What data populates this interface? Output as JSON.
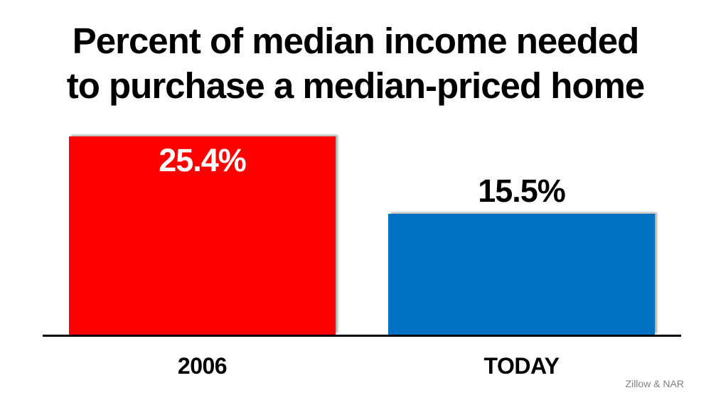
{
  "chart_data": {
    "type": "bar",
    "title": "Percent of median income needed to purchase a median-priced home",
    "title_lines": [
      "Percent of median income needed",
      "to purchase a median-priced home"
    ],
    "categories": [
      "2006",
      "TODAY"
    ],
    "values": [
      25.4,
      15.5
    ],
    "value_labels": [
      "25.4%",
      "15.5%"
    ],
    "series": [
      {
        "name": "Percent of median income needed",
        "values": [
          25.4,
          15.5
        ]
      }
    ],
    "bar_colors": [
      "#FF0000",
      "#0070C0"
    ],
    "value_label_colors": [
      "#FFFFFF",
      "#000000"
    ],
    "value_label_positions": [
      "inside-top",
      "above"
    ],
    "xlabel": "",
    "ylabel": "",
    "ylim": [
      0,
      27
    ],
    "grid": false,
    "legend": false,
    "axis_color": "#000000",
    "background_color": "#FFFFFF",
    "source": "Zillow & NAR",
    "source_color": "#808080"
  }
}
